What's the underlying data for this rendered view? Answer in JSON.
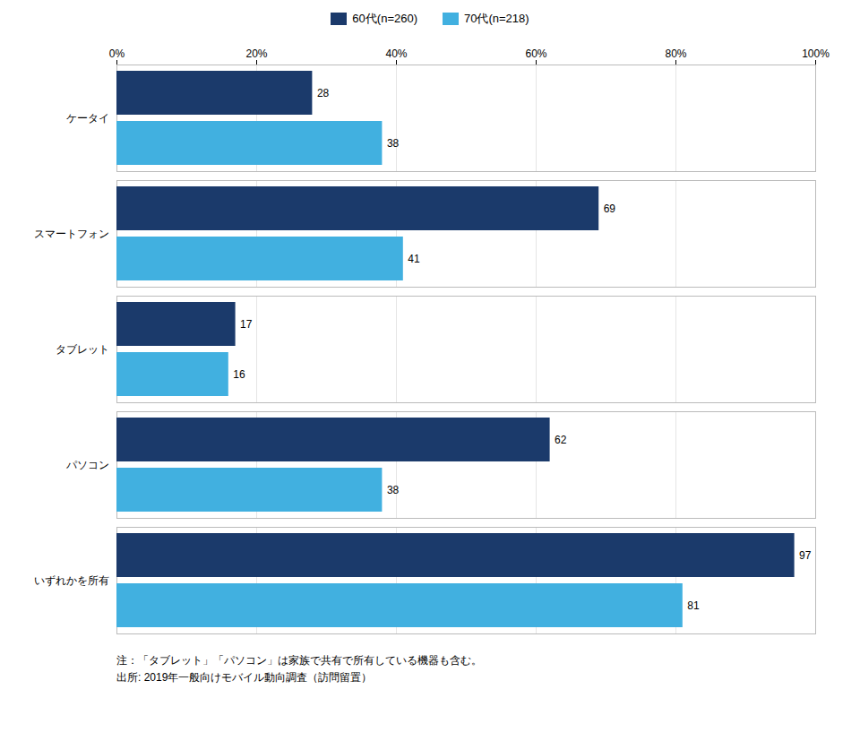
{
  "chart_data": {
    "type": "bar",
    "orientation": "horizontal",
    "categories": [
      "ケータイ",
      "スマートフォン",
      "タブレット",
      "パソコン",
      "いずれかを所有"
    ],
    "series": [
      {
        "name": "60代(n=260)",
        "color": "#1B3A6B",
        "values": [
          28,
          69,
          17,
          62,
          97
        ]
      },
      {
        "name": "70代(n=218)",
        "color": "#41B0E0",
        "values": [
          38,
          41,
          16,
          38,
          81
        ]
      }
    ],
    "xlim": [
      0,
      100
    ],
    "xticks": [
      {
        "value": 0,
        "label": "0%"
      },
      {
        "value": 20,
        "label": "20%"
      },
      {
        "value": 40,
        "label": "40%"
      },
      {
        "value": 60,
        "label": "60%"
      },
      {
        "value": 80,
        "label": "80%"
      },
      {
        "value": 100,
        "label": "100%"
      }
    ],
    "grid": true,
    "data_labels": true,
    "legend": "top",
    "annotations": [
      "注：「タブレット」「パソコン」は家族で共有で所有している機器も含む。",
      "出所: 2019年一般向けモバイル動向調査（訪問留置）"
    ]
  }
}
